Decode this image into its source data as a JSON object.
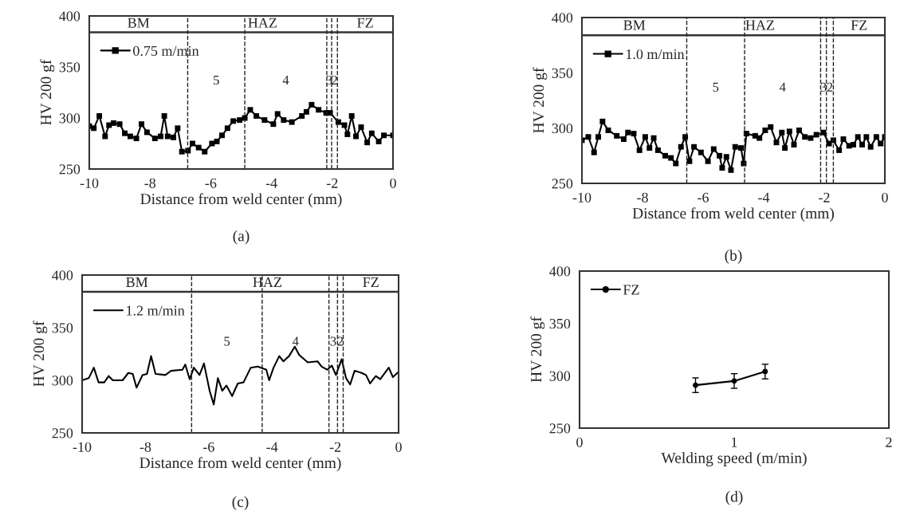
{
  "chart_data": [
    {
      "type": "line",
      "title": "(a)",
      "xlabel": "Distance from weld center (mm)",
      "ylabel": "HV 200 gf",
      "xlim": [
        -10,
        0
      ],
      "ylim": [
        250,
        400
      ],
      "xticks": [
        -10,
        -8,
        -6,
        -4,
        -2,
        0
      ],
      "yticks": [
        250,
        300,
        350,
        400
      ],
      "annotations": [
        "BM",
        "HAZ",
        "FZ",
        "5",
        "4",
        "3",
        "2"
      ],
      "legend": "top left",
      "marker": "square",
      "series": [
        {
          "name": "0.75 m/min",
          "color": "#000000",
          "x": [
            -10,
            -9.85,
            -9.67,
            -9.48,
            -9.35,
            -9.2,
            -9.0,
            -8.83,
            -8.65,
            -8.45,
            -8.28,
            -8.1,
            -7.84,
            -7.65,
            -7.53,
            -7.42,
            -7.23,
            -7.09,
            -6.95,
            -6.75,
            -6.6,
            -6.4,
            -6.2,
            -5.96,
            -5.8,
            -5.63,
            -5.45,
            -5.26,
            -5.05,
            -4.88,
            -4.7,
            -4.5,
            -4.23,
            -3.94,
            -3.8,
            -3.6,
            -3.33,
            -3.0,
            -2.85,
            -2.68,
            -2.45,
            -2.2,
            -2.07,
            -1.8,
            -1.6,
            -1.5,
            -1.36,
            -1.22,
            -1.05,
            -0.85,
            -0.7,
            -0.47,
            -0.3,
            0
          ],
          "values": [
            292,
            290,
            302,
            282,
            293,
            295,
            294,
            285,
            282,
            280,
            294,
            286,
            280,
            282,
            302,
            282,
            281,
            290,
            267,
            268,
            275,
            271,
            267,
            275,
            277,
            283,
            290,
            297,
            298,
            300,
            308,
            302,
            298,
            294,
            304,
            298,
            296,
            302,
            306,
            313,
            308,
            305,
            305,
            296,
            293,
            284,
            302,
            282,
            291,
            276,
            285,
            277,
            283,
            283
          ]
        }
      ],
      "ref_lines": [
        {
          "axis": "y",
          "value": 384
        },
        {
          "axis": "x",
          "value": -6.76,
          "line_style": "dashed"
        },
        {
          "axis": "x",
          "value": -4.88,
          "line_style": "dashed"
        },
        {
          "axis": "x",
          "value": -2.18,
          "line_style": "dashed"
        },
        {
          "axis": "x",
          "value": -2.02,
          "line_style": "dashed"
        },
        {
          "axis": "x",
          "value": -1.83,
          "line_style": "dashed"
        }
      ]
    },
    {
      "type": "line",
      "title": "(b)",
      "xlabel": "Distance from weld center (mm)",
      "ylabel": "HV 200 gf",
      "xlim": [
        -10,
        0
      ],
      "ylim": [
        250,
        400
      ],
      "xticks": [
        -10,
        -8,
        -6,
        -4,
        -2,
        0
      ],
      "yticks": [
        250,
        300,
        350,
        400
      ],
      "annotations": [
        "BM",
        "HAZ",
        "FZ",
        "5",
        "4",
        "3",
        "2"
      ],
      "legend": "top left",
      "marker": "square",
      "series": [
        {
          "name": "1.0 m/min",
          "color": "#000000",
          "x": [
            -10,
            -9.79,
            -9.6,
            -9.46,
            -9.32,
            -9.13,
            -8.85,
            -8.62,
            -8.48,
            -8.29,
            -8.1,
            -7.91,
            -7.77,
            -7.63,
            -7.49,
            -7.25,
            -7.06,
            -6.9,
            -6.73,
            -6.59,
            -6.45,
            -6.3,
            -6.07,
            -5.84,
            -5.65,
            -5.46,
            -5.37,
            -5.23,
            -5.08,
            -4.94,
            -4.75,
            -4.66,
            -4.57,
            -4.28,
            -4.14,
            -3.95,
            -3.77,
            -3.58,
            -3.4,
            -3.3,
            -3.15,
            -3.0,
            -2.83,
            -2.64,
            -2.45,
            -2.26,
            -2.03,
            -1.84,
            -1.7,
            -1.51,
            -1.37,
            -1.18,
            -1.04,
            -0.89,
            -0.75,
            -0.61,
            -0.47,
            -0.28,
            -0.14,
            0
          ],
          "values": [
            289,
            292,
            278,
            292,
            306,
            298,
            293,
            290,
            296,
            295,
            280,
            292,
            282,
            291,
            280,
            275,
            273,
            268,
            283,
            292,
            270,
            283,
            278,
            270,
            281,
            275,
            264,
            274,
            262,
            283,
            282,
            268,
            295,
            293,
            291,
            298,
            301,
            287,
            296,
            282,
            297,
            285,
            298,
            292,
            291,
            294,
            296,
            286,
            289,
            280,
            290,
            284,
            285,
            292,
            285,
            292,
            283,
            292,
            286,
            292
          ]
        }
      ],
      "ref_lines": [
        {
          "axis": "y",
          "value": 384
        },
        {
          "axis": "x",
          "value": -6.54,
          "line_style": "dashed"
        },
        {
          "axis": "x",
          "value": -4.63,
          "line_style": "dashed"
        },
        {
          "axis": "x",
          "value": -2.12,
          "line_style": "dashed"
        },
        {
          "axis": "x",
          "value": -1.93,
          "line_style": "dashed"
        },
        {
          "axis": "x",
          "value": -1.7,
          "line_style": "dashed"
        }
      ]
    },
    {
      "type": "line",
      "title": "(c)",
      "xlabel": "Distance from weld center (mm)",
      "ylabel": "HV 200 gf",
      "xlim": [
        -10,
        0
      ],
      "ylim": [
        250,
        400
      ],
      "xticks": [
        -10,
        -8,
        -6,
        -4,
        -2,
        0
      ],
      "yticks": [
        250,
        300,
        350,
        400
      ],
      "annotations": [
        "BM",
        "HAZ",
        "FZ",
        "5",
        "4",
        "3",
        "2"
      ],
      "legend": "top left",
      "marker": "none",
      "series": [
        {
          "name": "1.2 m/min",
          "color": "#000000",
          "x": [
            -10,
            -9.79,
            -9.63,
            -9.48,
            -9.3,
            -9.16,
            -9.03,
            -8.72,
            -8.54,
            -8.4,
            -8.28,
            -8.09,
            -7.95,
            -7.82,
            -7.68,
            -7.37,
            -7.19,
            -6.83,
            -6.74,
            -6.6,
            -6.47,
            -6.29,
            -6.15,
            -5.97,
            -5.84,
            -5.71,
            -5.57,
            -5.44,
            -5.26,
            -5.08,
            -4.9,
            -4.67,
            -4.45,
            -4.18,
            -4.09,
            -3.95,
            -3.77,
            -3.64,
            -3.46,
            -3.28,
            -3.14,
            -2.87,
            -2.56,
            -2.43,
            -2.25,
            -2.11,
            -1.98,
            -1.8,
            -1.66,
            -1.53,
            -1.39,
            -1.17,
            -1.03,
            -0.9,
            -0.72,
            -0.58,
            -0.31,
            -0.18,
            0
          ],
          "values": [
            300,
            302,
            312,
            298,
            298,
            304,
            300,
            300,
            307,
            306,
            293,
            305,
            306,
            323,
            306,
            305,
            309,
            310,
            315,
            301,
            312,
            305,
            316,
            290,
            277,
            302,
            290,
            295,
            285,
            297,
            298,
            312,
            313,
            310,
            300,
            312,
            323,
            318,
            323,
            332,
            324,
            317,
            318,
            313,
            310,
            314,
            305,
            320,
            302,
            296,
            309,
            307,
            305,
            297,
            304,
            301,
            312,
            303,
            308
          ]
        }
      ],
      "ref_lines": [
        {
          "axis": "y",
          "value": 384
        },
        {
          "axis": "x",
          "value": -6.54,
          "line_style": "dashed"
        },
        {
          "axis": "x",
          "value": -4.31,
          "line_style": "dashed"
        },
        {
          "axis": "x",
          "value": -2.2,
          "line_style": "dashed"
        },
        {
          "axis": "x",
          "value": -1.93,
          "line_style": "dashed"
        },
        {
          "axis": "x",
          "value": -1.75,
          "line_style": "dashed"
        }
      ]
    },
    {
      "type": "line",
      "title": "(d)",
      "xlabel": "Welding speed (m/min)",
      "ylabel": "HV 200 gf",
      "xlim": [
        0,
        2
      ],
      "ylim": [
        250,
        400
      ],
      "xticks": [
        0,
        1,
        2
      ],
      "yticks": [
        250,
        300,
        350,
        400
      ],
      "legend": "top left",
      "marker": "circle",
      "series": [
        {
          "name": "FZ",
          "color": "#000000",
          "x": [
            0.75,
            1.0,
            1.2
          ],
          "values": [
            291,
            295,
            304
          ],
          "errors": [
            7,
            7,
            7
          ]
        }
      ]
    }
  ]
}
